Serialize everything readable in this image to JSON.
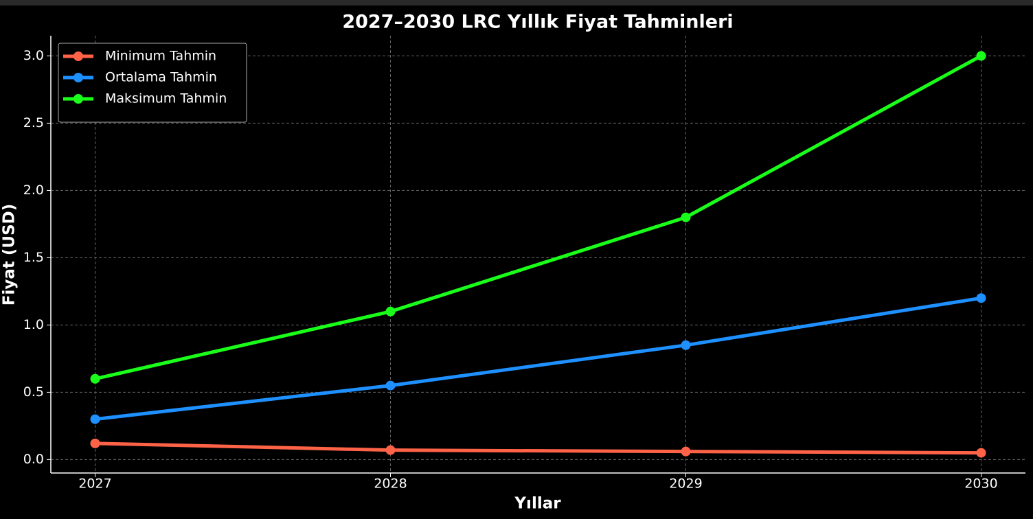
{
  "chart_data": {
    "type": "line",
    "title": "2027–2030 LRC Yıllık Fiyat Tahminleri",
    "x_label": "Yıllar",
    "y_label": "Fiyat (USD)",
    "x": [
      2027,
      2028,
      2029,
      2030
    ],
    "series": [
      {
        "name": "Minimum Tahmin",
        "color": "#ff6347",
        "values": [
          0.12,
          0.07,
          0.06,
          0.05
        ]
      },
      {
        "name": "Ortalama Tahmin",
        "color": "#1e90ff",
        "values": [
          0.3,
          0.55,
          0.85,
          1.2
        ]
      },
      {
        "name": "Maksimum Tahmin",
        "color": "#1aff1a",
        "values": [
          0.6,
          1.1,
          1.8,
          3.0
        ]
      }
    ],
    "xlim": [
      2026.85,
      2030.15
    ],
    "xticks": [
      2027,
      2028,
      2029,
      2030
    ],
    "ylim": [
      -0.1,
      3.15
    ],
    "yticks": [
      {
        "value": 0,
        "label": "0.0"
      },
      0.5,
      {
        "value": 1,
        "label": "1.0"
      },
      1.5,
      {
        "value": 2,
        "label": "2.0"
      },
      2.5,
      {
        "value": 3,
        "label": "3.0"
      }
    ],
    "grid": true,
    "legend": "upper-left"
  }
}
